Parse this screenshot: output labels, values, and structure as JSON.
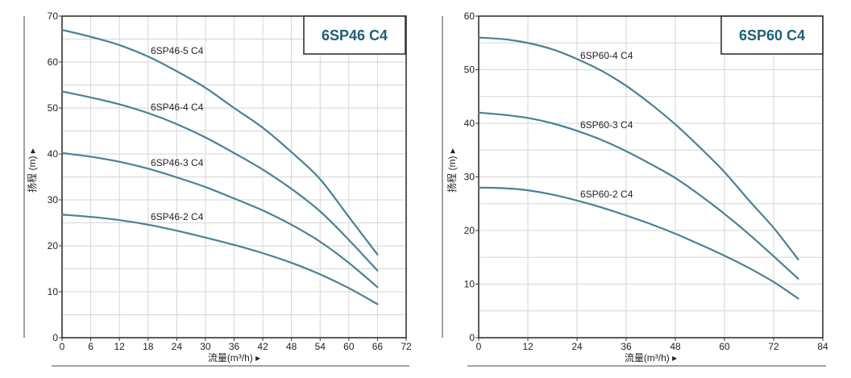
{
  "colors": {
    "curve": "#4a8196",
    "grid": "#d6d6d6",
    "axis": "#333333",
    "title": "#1f5f78"
  },
  "chart_data": [
    {
      "type": "line",
      "title": "6SP46 C4",
      "xlabel": "流量(m³/h) ▸",
      "ylabel": "扬程 (m) ▸",
      "xlim": [
        0,
        72
      ],
      "ylim": [
        0,
        70
      ],
      "xticks": [
        0,
        6,
        12,
        18,
        24,
        30,
        36,
        42,
        48,
        54,
        60,
        66,
        72
      ],
      "yticks": [
        0,
        10,
        20,
        30,
        40,
        50,
        60,
        70
      ],
      "series": [
        {
          "name": "6SP46-5 C4",
          "x": [
            0,
            6,
            12,
            18,
            24,
            30,
            36,
            42,
            48,
            54,
            60,
            66
          ],
          "y": [
            67,
            65.5,
            63.7,
            61.2,
            58,
            54.4,
            50,
            45.7,
            40.4,
            34.5,
            26.3,
            18.1
          ]
        },
        {
          "name": "6SP46-4 C4",
          "x": [
            0,
            6,
            12,
            18,
            24,
            30,
            36,
            42,
            48,
            54,
            60,
            66
          ],
          "y": [
            53.6,
            52.3,
            50.8,
            48.9,
            46.5,
            43.6,
            40.2,
            36.6,
            32.4,
            27.5,
            21.3,
            14.6
          ]
        },
        {
          "name": "6SP46-3 C4",
          "x": [
            0,
            6,
            12,
            18,
            24,
            30,
            36,
            42,
            48,
            54,
            60,
            66
          ],
          "y": [
            40.2,
            39.4,
            38.3,
            36.8,
            34.9,
            32.8,
            30.3,
            27.7,
            24.6,
            20.9,
            16.3,
            11
          ]
        },
        {
          "name": "6SP46-2 C4",
          "x": [
            0,
            6,
            12,
            18,
            24,
            30,
            36,
            42,
            48,
            54,
            60,
            66
          ],
          "y": [
            26.8,
            26.3,
            25.6,
            24.6,
            23.3,
            21.8,
            20.2,
            18.4,
            16.3,
            13.8,
            10.8,
            7.3
          ]
        }
      ]
    },
    {
      "type": "line",
      "title": "6SP60 C4",
      "xlabel": "流量(m³/h) ▸",
      "ylabel": "扬程 (m) ▸",
      "xlim": [
        0,
        84
      ],
      "ylim": [
        0,
        60
      ],
      "xticks": [
        0,
        12,
        24,
        36,
        48,
        60,
        72,
        84
      ],
      "yticks": [
        0,
        10,
        20,
        30,
        40,
        50,
        60
      ],
      "series": [
        {
          "name": "6SP60-4 C4",
          "x": [
            0,
            6,
            12,
            18,
            24,
            30,
            36,
            42,
            48,
            54,
            60,
            66,
            72,
            78
          ],
          "y": [
            56,
            55.7,
            55,
            53.8,
            52,
            49.8,
            47,
            43.6,
            39.8,
            35.5,
            30.9,
            25.6,
            20.5,
            14.6
          ]
        },
        {
          "name": "6SP60-3 C4",
          "x": [
            0,
            6,
            12,
            18,
            24,
            30,
            36,
            42,
            48,
            54,
            60,
            66,
            72,
            78
          ],
          "y": [
            42,
            41.6,
            41,
            40,
            38.6,
            36.9,
            34.8,
            32.4,
            29.8,
            26.6,
            23.1,
            19.3,
            15.2,
            11
          ]
        },
        {
          "name": "6SP60-2 C4",
          "x": [
            0,
            6,
            12,
            18,
            24,
            30,
            36,
            42,
            48,
            54,
            60,
            66,
            72,
            78
          ],
          "y": [
            28,
            27.9,
            27.5,
            26.7,
            25.6,
            24.3,
            22.8,
            21.2,
            19.4,
            17.4,
            15.3,
            13,
            10.4,
            7.3
          ]
        }
      ]
    }
  ]
}
